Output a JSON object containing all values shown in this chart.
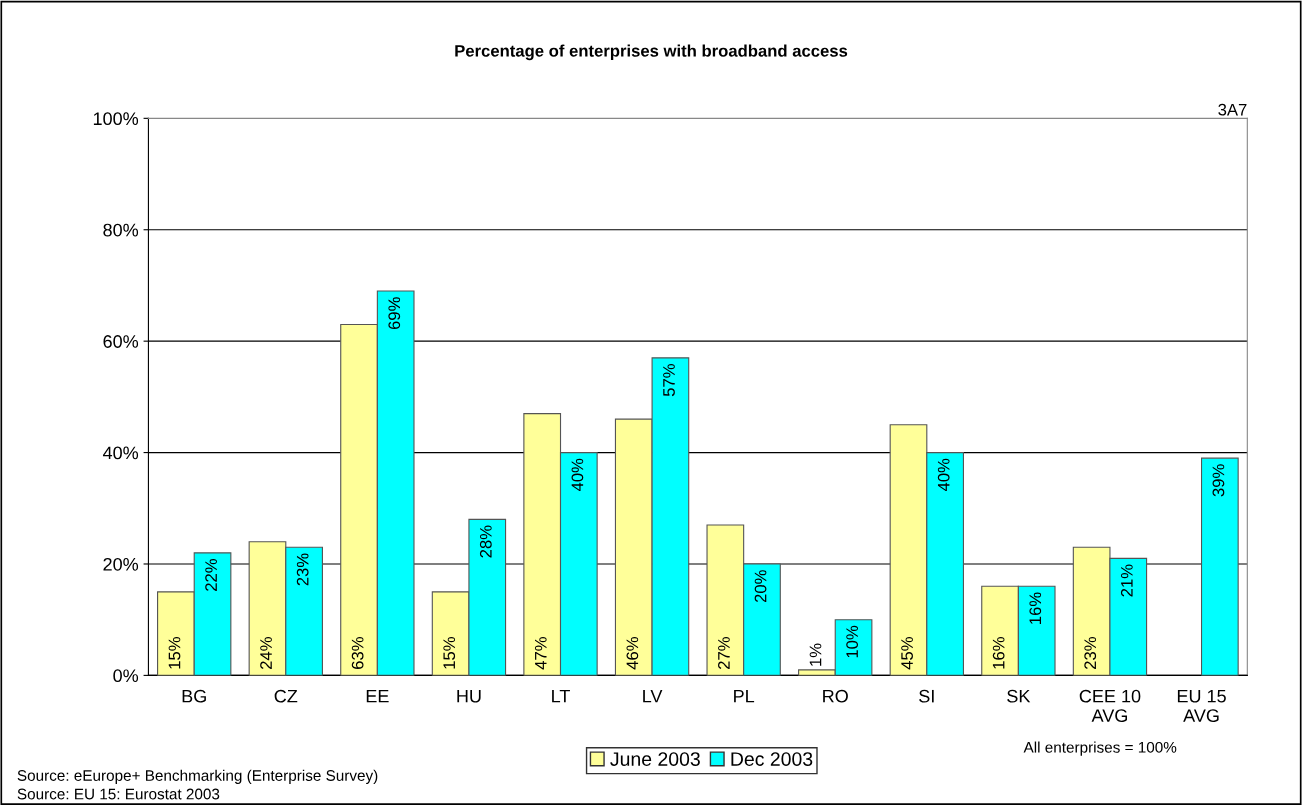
{
  "chart_data": {
    "type": "bar",
    "title": "Percentage of enterprises with broadband access",
    "categories": [
      "BG",
      "CZ",
      "EE",
      "HU",
      "LT",
      "LV",
      "PL",
      "RO",
      "SI",
      "SK",
      "CEE 10\nAVG",
      "EU 15\nAVG"
    ],
    "series": [
      {
        "name": "June 2003",
        "color": "#ffff99",
        "values": [
          15,
          24,
          63,
          15,
          47,
          46,
          27,
          1,
          45,
          16,
          23,
          null
        ],
        "value_labels": [
          "15%",
          "24%",
          "63%",
          "15%",
          "47%",
          "46%",
          "27%",
          "1%",
          "45%",
          "16%",
          "23%",
          null
        ]
      },
      {
        "name": "Dec 2003",
        "color": "#00ffff",
        "values": [
          22,
          23,
          69,
          28,
          40,
          57,
          20,
          10,
          40,
          16,
          21,
          39
        ],
        "value_labels": [
          "22%",
          "23%",
          "69%",
          "28%",
          "40%",
          "57%",
          "20%",
          "10%",
          "40%",
          "16%",
          "21%",
          "39%"
        ]
      }
    ],
    "ylim": [
      0,
      100
    ],
    "yticks": [
      {
        "value": 0,
        "label": "0%"
      },
      {
        "value": 20,
        "label": "20%"
      },
      {
        "value": 40,
        "label": "40%"
      },
      {
        "value": 60,
        "label": "60%"
      },
      {
        "value": 80,
        "label": "80%"
      },
      {
        "value": 100,
        "label": "100%"
      }
    ],
    "grid": "y",
    "legend": "bottom",
    "annotations": [
      "3A7",
      "Source: eEurope+ Benchmarking (Enterprise Survey)",
      "Source: EU 15: Eurostat 2003",
      "All enterprises = 100%"
    ]
  }
}
